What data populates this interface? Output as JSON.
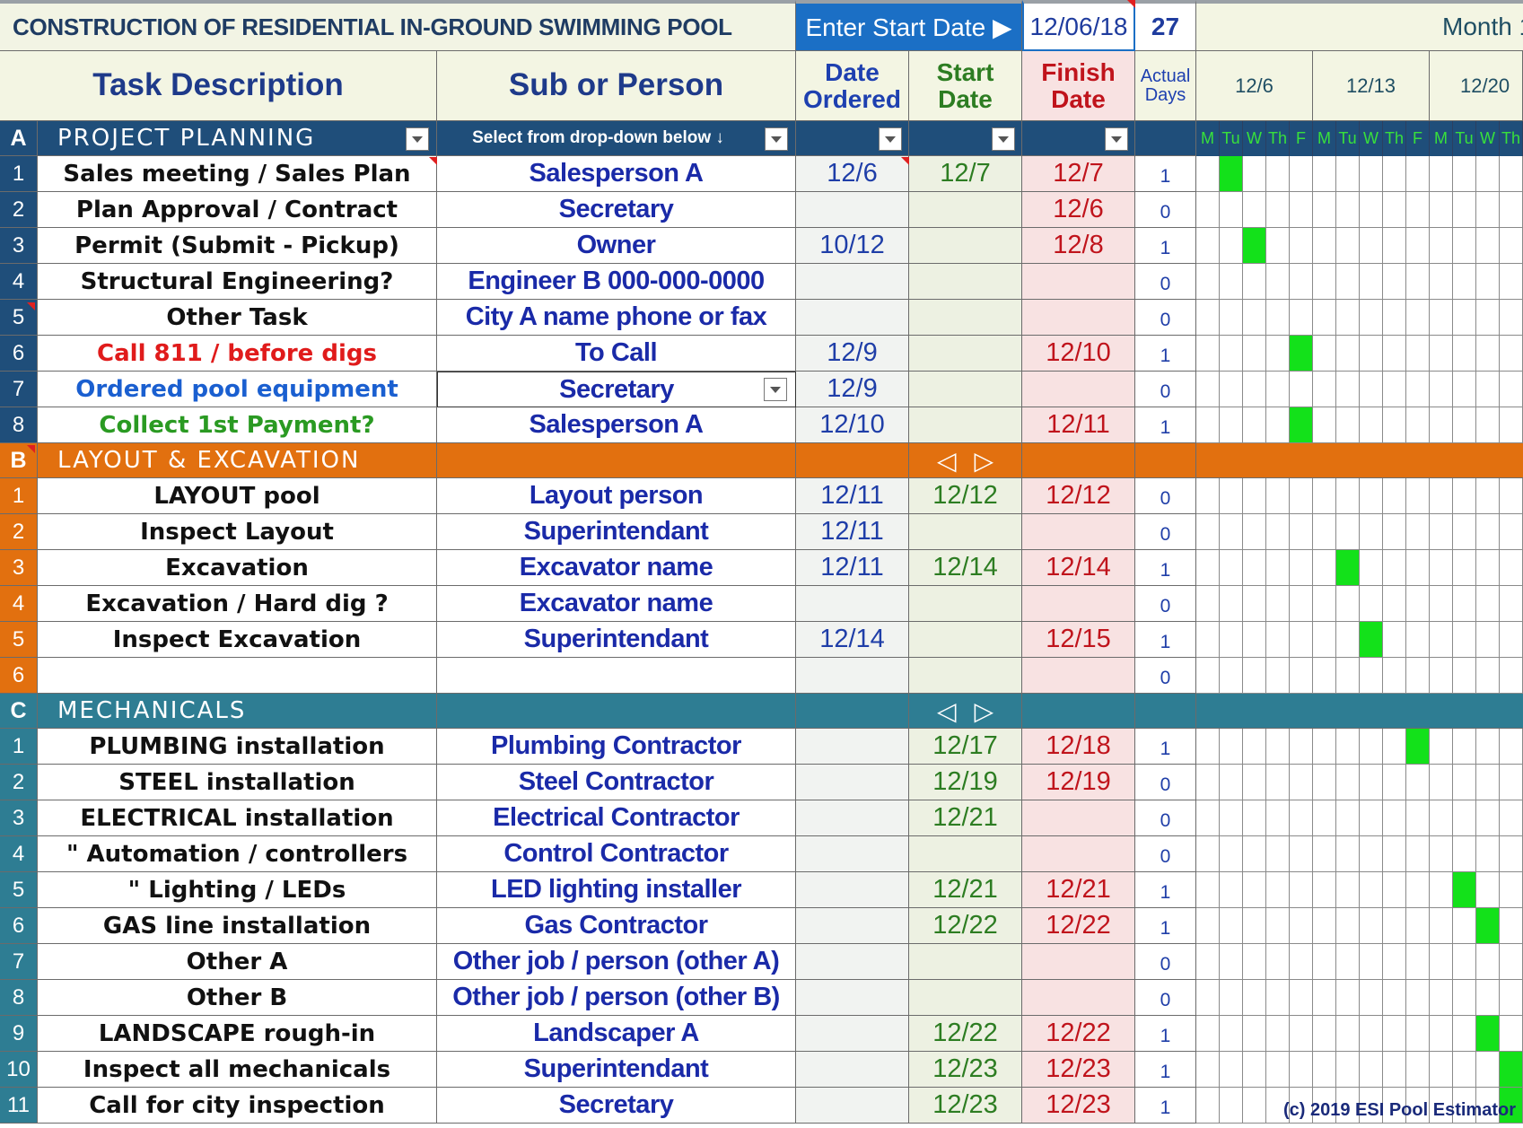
{
  "title": "CONSTRUCTION OF RESIDENTIAL IN-GROUND SWIMMING POOL",
  "start_prompt": "Enter Start Date ▶",
  "start_date": "12/06/18",
  "total_days": "27",
  "month_label": "Month 1",
  "headers": {
    "task": "Task Description",
    "sub": "Sub or Person",
    "ordered": [
      "Date",
      "Ordered"
    ],
    "start": [
      "Start",
      "Date"
    ],
    "finish": [
      "Finish",
      "Date"
    ],
    "days": [
      "Actual",
      "Days"
    ]
  },
  "week_labels": [
    "12/6",
    "12/13",
    "12/20"
  ],
  "day_letters": [
    "M",
    "Tu",
    "W",
    "Th",
    "F",
    "M",
    "Tu",
    "W",
    "Th",
    "F",
    "M",
    "Tu",
    "W",
    "Th"
  ],
  "filter_hint": "Select from drop-down below ↓",
  "nav_glyphs": {
    "prev": "◁",
    "next": "▷"
  },
  "colors": {
    "A": "#1f4e7a",
    "B": "#e2700f",
    "C": "#2e7d93",
    "bar": "#13e11a"
  },
  "sections": [
    {
      "letter": "A",
      "name": "PROJECT PLANNING",
      "rows": [
        {
          "n": "1",
          "task": "Sales meeting  /  Sales Plan",
          "sub": "Salesperson A",
          "ordered": "12/6",
          "start": "12/7",
          "finish": "12/7",
          "days": "1",
          "tc": "#111",
          "bars": [
            1
          ]
        },
        {
          "n": "2",
          "task": "Plan Approval  /  Contract",
          "sub": "Secretary",
          "ordered": "",
          "start": "",
          "finish": "12/6",
          "days": "0",
          "tc": "#111",
          "bars": []
        },
        {
          "n": "3",
          "task": "Permit (Submit - Pickup)",
          "sub": "Owner",
          "ordered": "10/12",
          "start": "",
          "finish": "12/8",
          "days": "1",
          "tc": "#111",
          "bars": [
            2
          ]
        },
        {
          "n": "4",
          "task": "Structural Engineering?",
          "sub": "Engineer B  000-000-0000",
          "ordered": "",
          "start": "",
          "finish": "",
          "days": "0",
          "tc": "#111",
          "bars": []
        },
        {
          "n": "5",
          "task": "Other Task",
          "sub": "City A name phone or fax",
          "ordered": "",
          "start": "",
          "finish": "",
          "days": "0",
          "tc": "#111",
          "bars": []
        },
        {
          "n": "6",
          "task": "Call 811 / before digs",
          "sub": "To Call",
          "ordered": "12/9",
          "start": "",
          "finish": "12/10",
          "days": "1",
          "tc": "#e01b1b",
          "bars": [
            4
          ]
        },
        {
          "n": "7",
          "task": "Ordered pool equipment",
          "sub": "Secretary",
          "ordered": "12/9",
          "start": "",
          "finish": "",
          "days": "0",
          "tc": "#1a5fd0",
          "bars": [],
          "dropdown": true
        },
        {
          "n": "8",
          "task": "Collect 1st Payment?",
          "sub": "Salesperson A",
          "ordered": "12/10",
          "start": "",
          "finish": "12/11",
          "days": "1",
          "tc": "#2a9a22",
          "bars": [
            4
          ]
        }
      ]
    },
    {
      "letter": "B",
      "name": "LAYOUT & EXCAVATION",
      "rows": [
        {
          "n": "1",
          "task": "LAYOUT pool",
          "sub": "Layout person",
          "ordered": "12/11",
          "start": "12/12",
          "finish": "12/12",
          "days": "0",
          "tc": "#111",
          "bars": []
        },
        {
          "n": "2",
          "task": "Inspect Layout",
          "sub": "Superintendant",
          "ordered": "12/11",
          "start": "",
          "finish": "",
          "days": "0",
          "tc": "#111",
          "bars": []
        },
        {
          "n": "3",
          "task": "Excavation",
          "sub": "Excavator name",
          "ordered": "12/11",
          "start": "12/14",
          "finish": "12/14",
          "days": "1",
          "tc": "#111",
          "bars": [
            6
          ]
        },
        {
          "n": "4",
          "task": "Excavation / Hard dig ?",
          "sub": "Excavator name",
          "ordered": "",
          "start": "",
          "finish": "",
          "days": "0",
          "tc": "#111",
          "bars": []
        },
        {
          "n": "5",
          "task": "Inspect Excavation",
          "sub": "Superintendant",
          "ordered": "12/14",
          "start": "",
          "finish": "12/15",
          "days": "1",
          "tc": "#111",
          "bars": [
            7
          ]
        },
        {
          "n": "6",
          "task": "",
          "sub": "",
          "ordered": "",
          "start": "",
          "finish": "",
          "days": "0",
          "tc": "#111",
          "bars": []
        }
      ]
    },
    {
      "letter": "C",
      "name": "MECHANICALS",
      "rows": [
        {
          "n": "1",
          "task": "PLUMBING installation",
          "sub": "Plumbing Contractor",
          "ordered": "",
          "start": "12/17",
          "finish": "12/18",
          "days": "1",
          "tc": "#111",
          "bars": [
            9
          ]
        },
        {
          "n": "2",
          "task": "STEEL installation",
          "sub": "Steel Contractor",
          "ordered": "",
          "start": "12/19",
          "finish": "12/19",
          "days": "0",
          "tc": "#111",
          "bars": []
        },
        {
          "n": "3",
          "task": "ELECTRICAL installation",
          "sub": "Electrical Contractor",
          "ordered": "",
          "start": "12/21",
          "finish": "",
          "days": "0",
          "tc": "#111",
          "bars": []
        },
        {
          "n": "4",
          "task": "\" Automation / controllers",
          "sub": "Control Contractor",
          "ordered": "",
          "start": "",
          "finish": "",
          "days": "0",
          "tc": "#111",
          "bars": []
        },
        {
          "n": "5",
          "task": "\" Lighting / LEDs",
          "sub": "LED lighting installer",
          "ordered": "",
          "start": "12/21",
          "finish": "12/21",
          "days": "1",
          "tc": "#111",
          "bars": [
            11
          ]
        },
        {
          "n": "6",
          "task": "GAS line installation",
          "sub": "Gas Contractor",
          "ordered": "",
          "start": "12/22",
          "finish": "12/22",
          "days": "1",
          "tc": "#111",
          "bars": [
            12
          ]
        },
        {
          "n": "7",
          "task": "Other A",
          "sub": "Other job / person (other A)",
          "ordered": "",
          "start": "",
          "finish": "",
          "days": "0",
          "tc": "#111",
          "bars": []
        },
        {
          "n": "8",
          "task": "Other B",
          "sub": "Other job / person (other B)",
          "ordered": "",
          "start": "",
          "finish": "",
          "days": "0",
          "tc": "#111",
          "bars": []
        },
        {
          "n": "9",
          "task": "LANDSCAPE rough-in",
          "sub": "Landscaper A",
          "ordered": "",
          "start": "12/22",
          "finish": "12/22",
          "days": "1",
          "tc": "#111",
          "bars": [
            12
          ]
        },
        {
          "n": "10",
          "task": "Inspect all mechanicals",
          "sub": "Superintendant",
          "ordered": "",
          "start": "12/23",
          "finish": "12/23",
          "days": "1",
          "tc": "#111",
          "bars": [
            13
          ]
        },
        {
          "n": "11",
          "task": "Call for city inspection",
          "sub": "Secretary",
          "ordered": "",
          "start": "12/23",
          "finish": "12/23",
          "days": "1",
          "tc": "#111",
          "bars": [
            13
          ]
        }
      ]
    }
  ],
  "copyright": "(c) 2019 ESI Pool Estimator"
}
